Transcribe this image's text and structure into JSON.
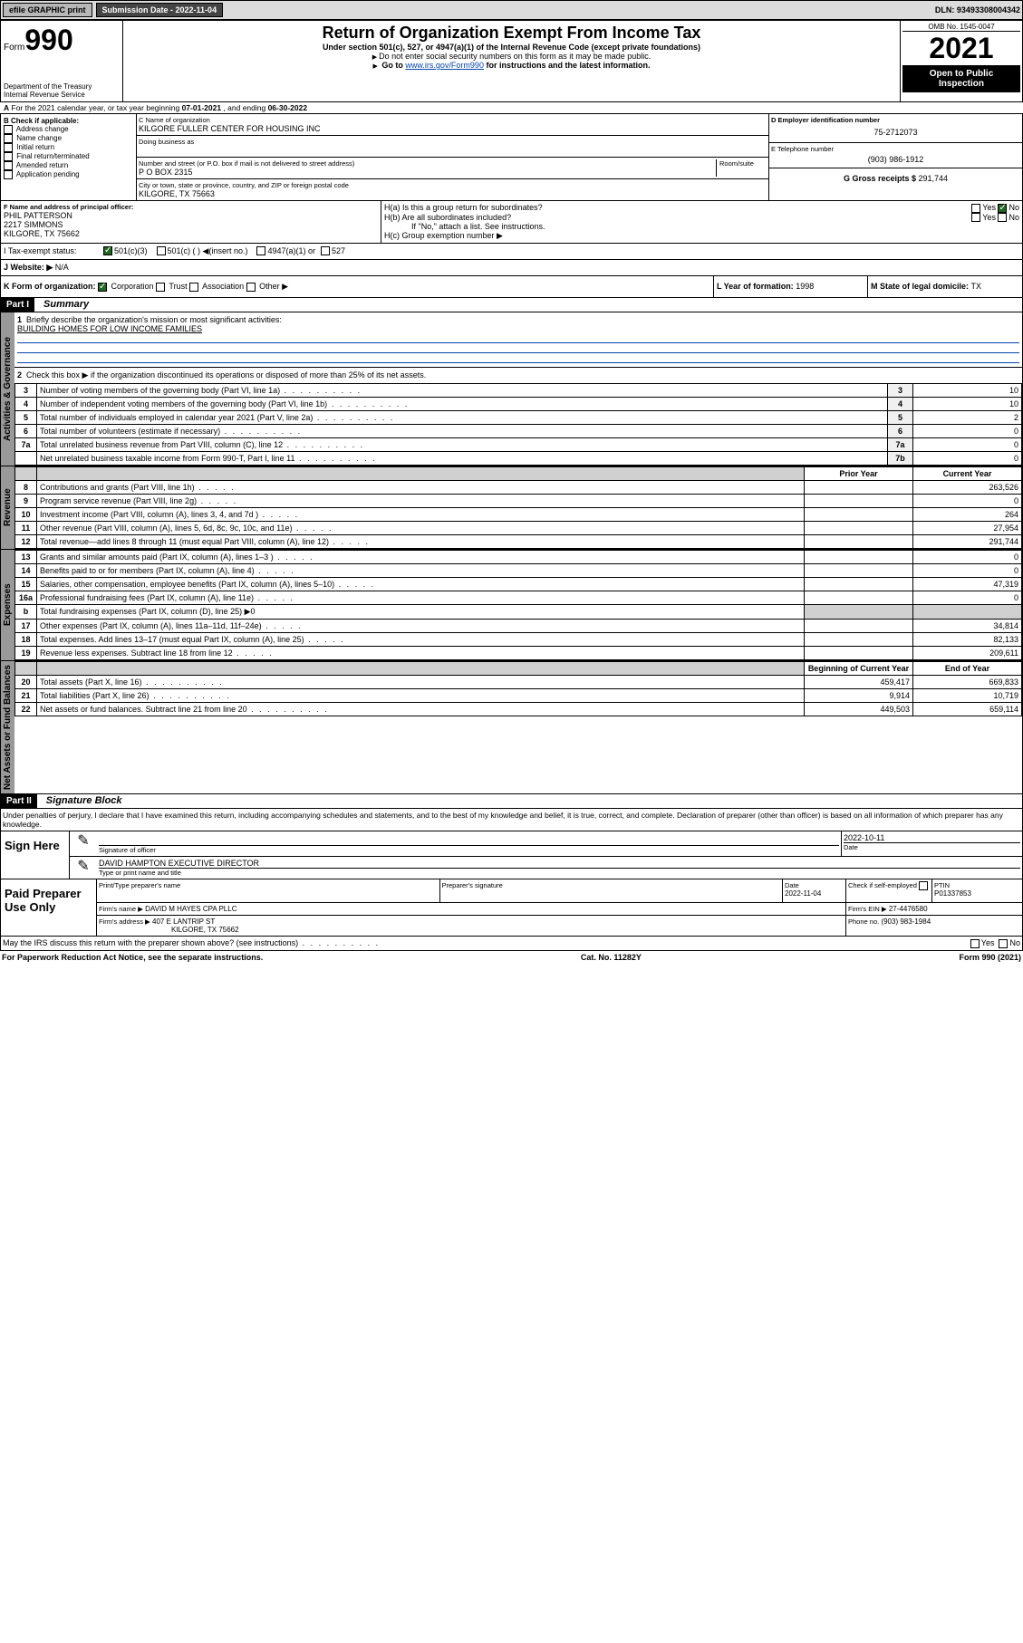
{
  "topbar": {
    "efile": "efile GRAPHIC print",
    "sub_label": "Submission Date - 2022-11-04",
    "dln": "DLN: 93493308004342"
  },
  "header": {
    "form_label": "Form",
    "form_num": "990",
    "title": "Return of Organization Exempt From Income Tax",
    "sub1": "Under section 501(c), 527, or 4947(a)(1) of the Internal Revenue Code (except private foundations)",
    "sub2": "Do not enter social security numbers on this form as it may be made public.",
    "sub3_pre": "Go to ",
    "sub3_link": "www.irs.gov/Form990",
    "sub3_post": " for instructions and the latest information.",
    "dept": "Department of the Treasury",
    "irs": "Internal Revenue Service",
    "omb": "OMB No. 1545-0047",
    "year": "2021",
    "open": "Open to Public Inspection"
  },
  "A": {
    "label": "A",
    "text_pre": "For the 2021 calendar year, or tax year beginning ",
    "begin": "07-01-2021",
    "mid": " , and ending ",
    "end": "06-30-2022"
  },
  "B": {
    "hdr": "B Check if applicable:",
    "items": [
      "Address change",
      "Name change",
      "Initial return",
      "Final return/terminated",
      "Amended return",
      "Application pending"
    ]
  },
  "C": {
    "label": "C Name of organization",
    "name": "KILGORE FULLER CENTER FOR HOUSING INC",
    "dba": "Doing business as",
    "street_label": "Number and street (or P.O. box if mail is not delivered to street address)",
    "room_label": "Room/suite",
    "street": "P O BOX 2315",
    "city_label": "City or town, state or province, country, and ZIP or foreign postal code",
    "city": "KILGORE, TX  75663"
  },
  "D": {
    "label": "D Employer identification number",
    "val": "75-2712073"
  },
  "E": {
    "label": "E Telephone number",
    "val": "(903) 986-1912"
  },
  "G": {
    "label": "G Gross receipts $ ",
    "val": "291,744"
  },
  "F": {
    "label": "F Name and address of principal officer:",
    "name": "PHIL PATTERSON",
    "street": "2217 SIMMONS",
    "city": "KILGORE, TX  75662"
  },
  "H": {
    "a_label": "H(a)  Is this a group return for subordinates?",
    "b_label": "H(b)  Are all subordinates included?",
    "b_note": "If \"No,\" attach a list. See instructions.",
    "c_label": "H(c)  Group exemption number ▶",
    "yes": "Yes",
    "no": "No"
  },
  "I": {
    "label": "I     Tax-exempt status:",
    "opt1": "501(c)(3)",
    "opt2": "501(c) (   ) ◀(insert no.)",
    "opt3": "4947(a)(1) or",
    "opt4": "527"
  },
  "J": {
    "label": "J    Website: ▶",
    "val": "N/A"
  },
  "K": {
    "label": "K Form of organization:",
    "opts": [
      "Corporation",
      "Trust",
      "Association",
      "Other ▶"
    ]
  },
  "L": {
    "label": "L Year of formation: ",
    "val": "1998"
  },
  "M": {
    "label": "M State of legal domicile: ",
    "val": "TX"
  },
  "part1": {
    "hdr": "Part I",
    "title": "Summary",
    "q1_label": "1",
    "q1": "Briefly describe the organization's mission or most significant activities:",
    "q1_val": "BUILDING HOMES FOR LOW INCOME FAMILIES",
    "q2_label": "2",
    "q2": "Check this box ▶       if the organization discontinued its operations or disposed of more than 25% of its net assets.",
    "rows_gov": [
      {
        "n": "3",
        "t": "Number of voting members of the governing body (Part VI, line 1a)",
        "ln": "3",
        "v": "10"
      },
      {
        "n": "4",
        "t": "Number of independent voting members of the governing body (Part VI, line 1b)",
        "ln": "4",
        "v": "10"
      },
      {
        "n": "5",
        "t": "Total number of individuals employed in calendar year 2021 (Part V, line 2a)",
        "ln": "5",
        "v": "2"
      },
      {
        "n": "6",
        "t": "Total number of volunteers (estimate if necessary)",
        "ln": "6",
        "v": "0"
      },
      {
        "n": "7a",
        "t": "Total unrelated business revenue from Part VIII, column (C), line 12",
        "ln": "7a",
        "v": "0"
      },
      {
        "n": "",
        "t": "Net unrelated business taxable income from Form 990-T, Part I, line 11",
        "ln": "7b",
        "v": "0"
      }
    ],
    "col_prior": "Prior Year",
    "col_curr": "Current Year",
    "rows_rev": [
      {
        "n": "8",
        "t": "Contributions and grants (Part VIII, line 1h)",
        "p": "",
        "c": "263,526"
      },
      {
        "n": "9",
        "t": "Program service revenue (Part VIII, line 2g)",
        "p": "",
        "c": "0"
      },
      {
        "n": "10",
        "t": "Investment income (Part VIII, column (A), lines 3, 4, and 7d )",
        "p": "",
        "c": "264"
      },
      {
        "n": "11",
        "t": "Other revenue (Part VIII, column (A), lines 5, 6d, 8c, 9c, 10c, and 11e)",
        "p": "",
        "c": "27,954"
      },
      {
        "n": "12",
        "t": "Total revenue—add lines 8 through 11 (must equal Part VIII, column (A), line 12)",
        "p": "",
        "c": "291,744"
      }
    ],
    "rows_exp": [
      {
        "n": "13",
        "t": "Grants and similar amounts paid (Part IX, column (A), lines 1–3 )",
        "p": "",
        "c": "0"
      },
      {
        "n": "14",
        "t": "Benefits paid to or for members (Part IX, column (A), line 4)",
        "p": "",
        "c": "0"
      },
      {
        "n": "15",
        "t": "Salaries, other compensation, employee benefits (Part IX, column (A), lines 5–10)",
        "p": "",
        "c": "47,319"
      },
      {
        "n": "16a",
        "t": "Professional fundraising fees (Part IX, column (A), line 11e)",
        "p": "",
        "c": "0"
      },
      {
        "n": "b",
        "t": "Total fundraising expenses (Part IX, column (D), line 25) ▶0",
        "p": null,
        "c": null
      },
      {
        "n": "17",
        "t": "Other expenses (Part IX, column (A), lines 11a–11d, 11f–24e)",
        "p": "",
        "c": "34,814"
      },
      {
        "n": "18",
        "t": "Total expenses. Add lines 13–17 (must equal Part IX, column (A), line 25)",
        "p": "",
        "c": "82,133"
      },
      {
        "n": "19",
        "t": "Revenue less expenses. Subtract line 18 from line 12",
        "p": "",
        "c": "209,611"
      }
    ],
    "col_begin": "Beginning of Current Year",
    "col_end": "End of Year",
    "rows_net": [
      {
        "n": "20",
        "t": "Total assets (Part X, line 16)",
        "p": "459,417",
        "c": "669,833"
      },
      {
        "n": "21",
        "t": "Total liabilities (Part X, line 26)",
        "p": "9,914",
        "c": "10,719"
      },
      {
        "n": "22",
        "t": "Net assets or fund balances. Subtract line 21 from line 20",
        "p": "449,503",
        "c": "659,114"
      }
    ],
    "vlab_gov": "Activities & Governance",
    "vlab_rev": "Revenue",
    "vlab_exp": "Expenses",
    "vlab_net": "Net Assets or Fund Balances"
  },
  "part2": {
    "hdr": "Part II",
    "title": "Signature Block",
    "decl": "Under penalties of perjury, I declare that I have examined this return, including accompanying schedules and statements, and to the best of my knowledge and belief, it is true, correct, and complete. Declaration of preparer (other than officer) is based on all information of which preparer has any knowledge.",
    "sign_here": "Sign Here",
    "sig_officer": "Signature of officer",
    "date": "Date",
    "sig_date": "2022-10-11",
    "officer_name": "DAVID HAMPTON  EXECUTIVE DIRECTOR",
    "type_name": "Type or print name and title",
    "paid": "Paid Preparer Use Only",
    "prep_name_label": "Print/Type preparer's name",
    "prep_sig_label": "Preparer's signature",
    "prep_date_label": "Date",
    "prep_date": "2022-11-04",
    "check_self": "Check        if self-employed",
    "ptin_label": "PTIN",
    "ptin": "P01337853",
    "firm_name_label": "Firm's name     ▶",
    "firm_name": "DAVID M HAYES CPA PLLC",
    "firm_ein_label": "Firm's EIN ▶",
    "firm_ein": "27-4476580",
    "firm_addr_label": "Firm's address ▶",
    "firm_addr1": "407 E LANTRIP ST",
    "firm_addr2": "KILGORE, TX  75662",
    "phone_label": "Phone no.",
    "phone": "(903) 983-1984",
    "discuss": "May the IRS discuss this return with the preparer shown above? (see instructions)"
  },
  "footer": {
    "pra": "For Paperwork Reduction Act Notice, see the separate instructions.",
    "cat": "Cat. No. 11282Y",
    "form": "Form 990 (2021)"
  }
}
